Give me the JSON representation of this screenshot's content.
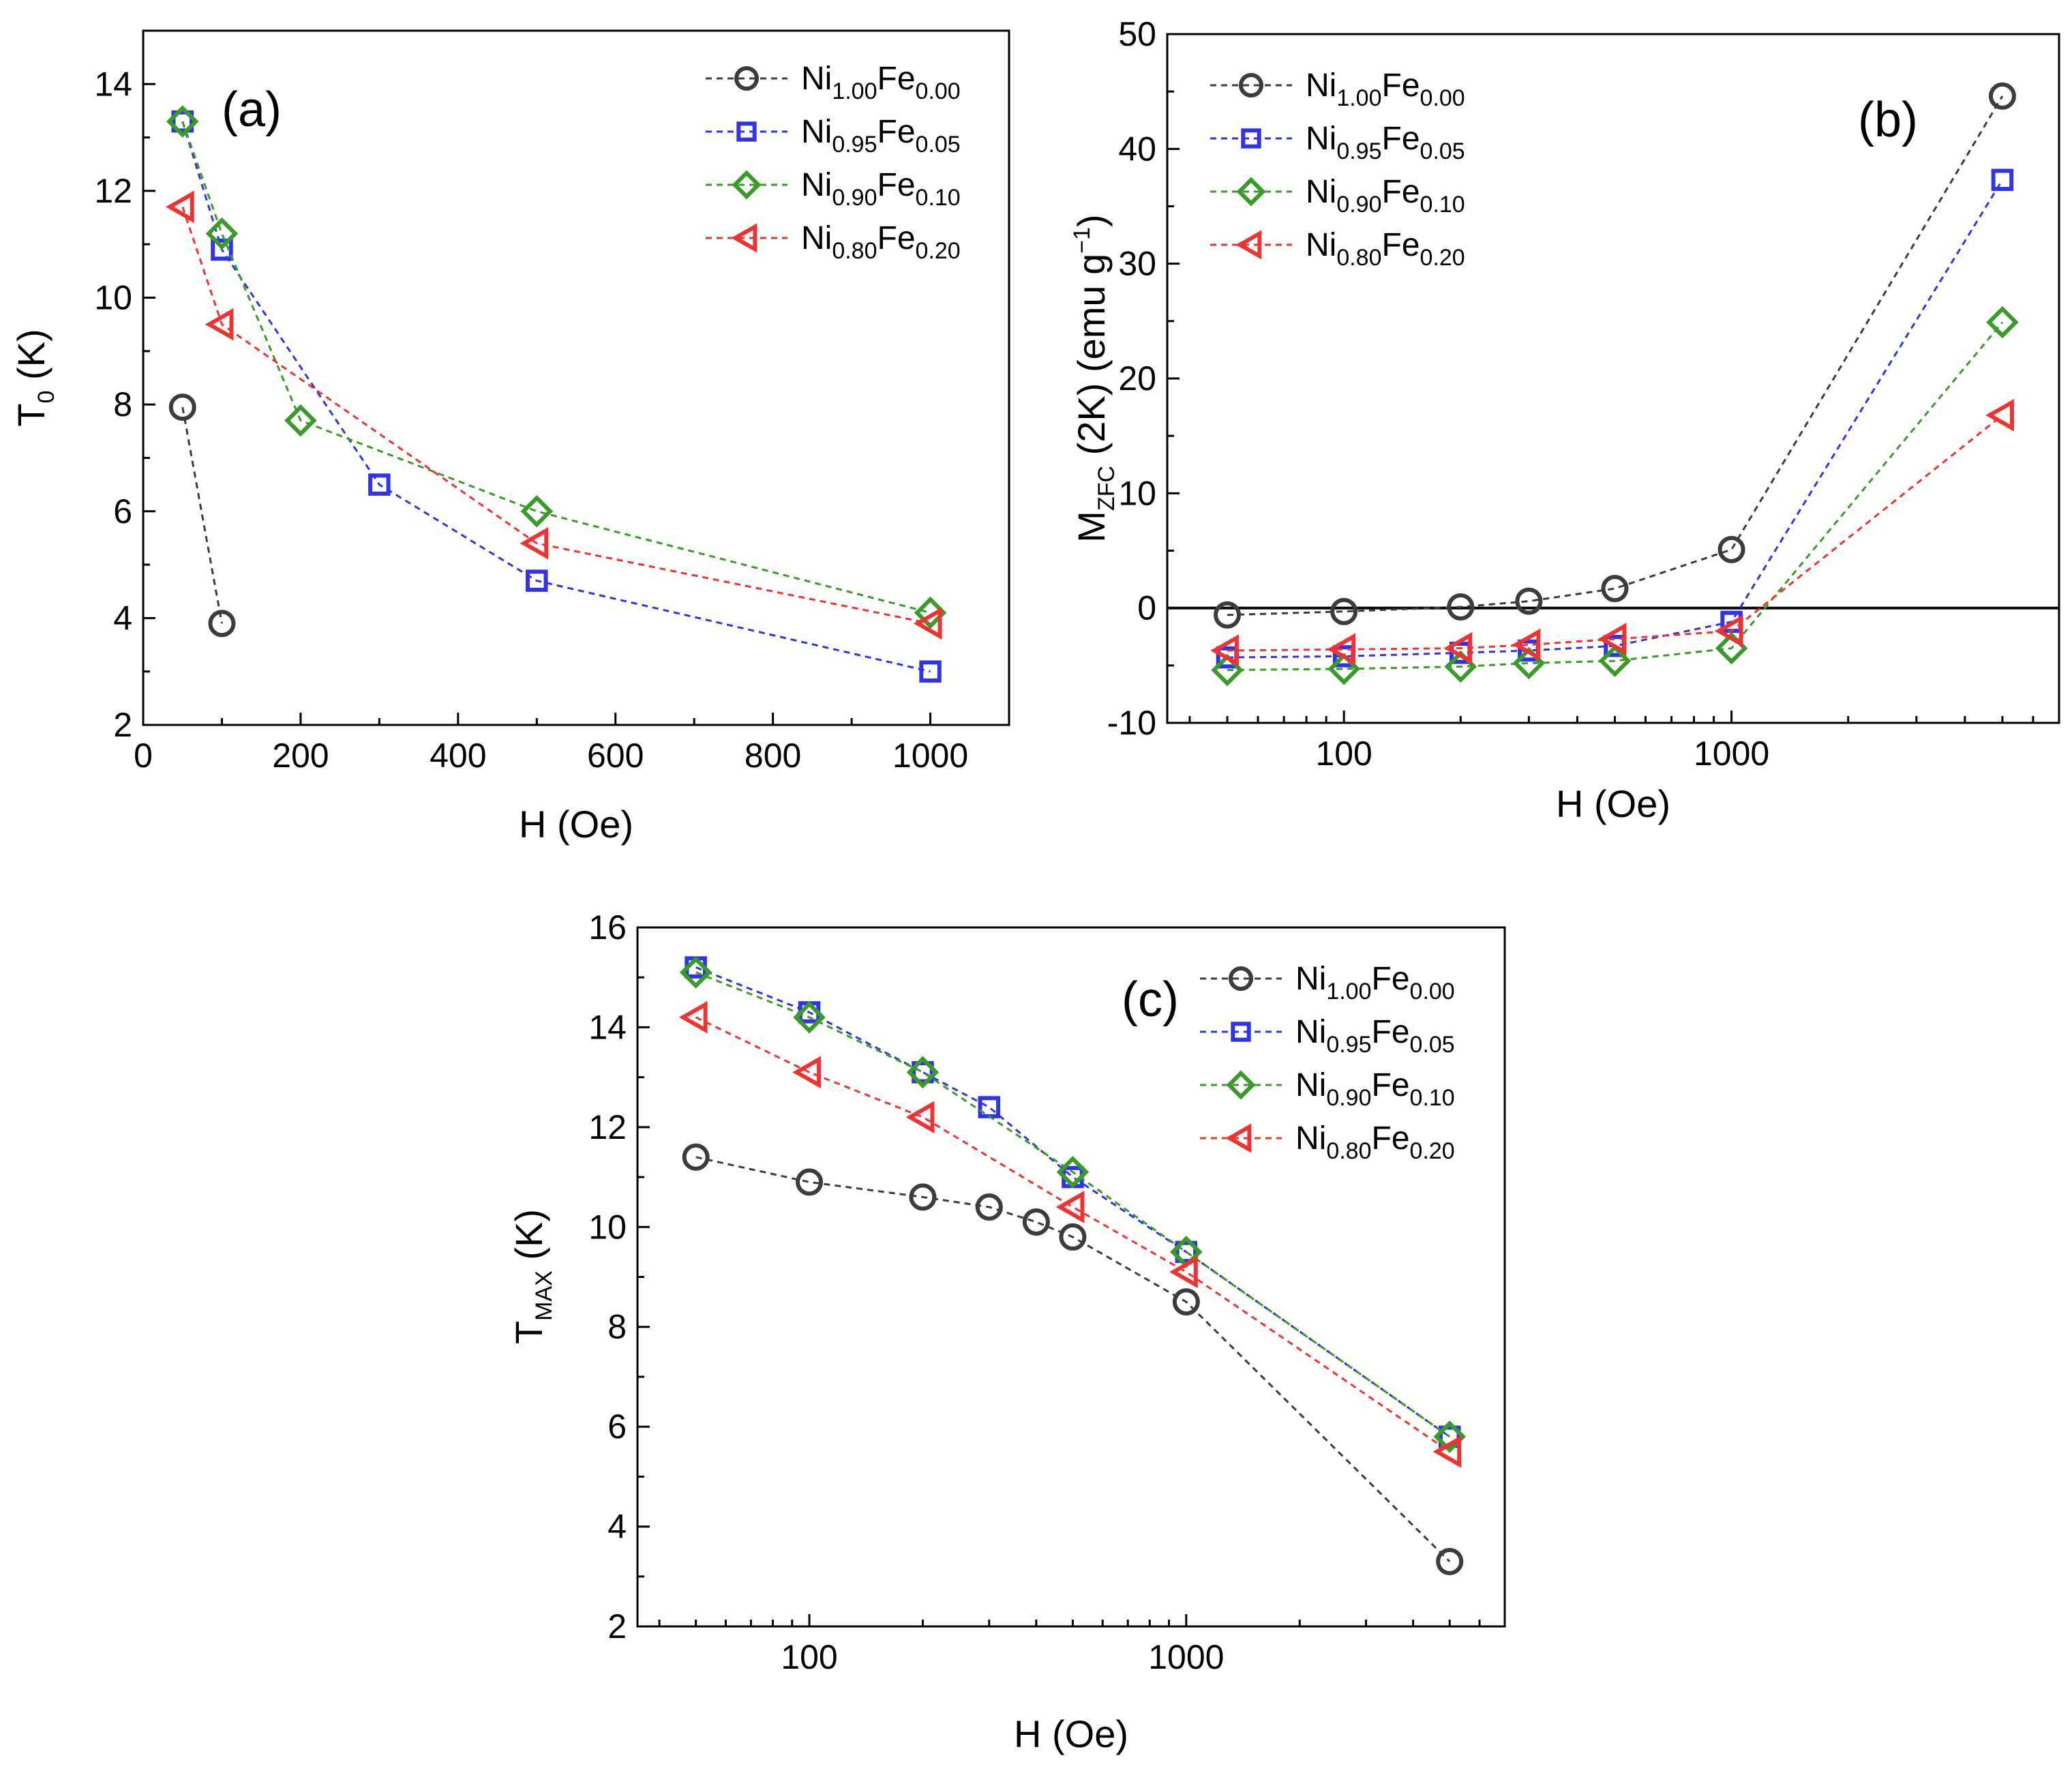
{
  "colors": {
    "Ni1.00Fe0.00": "#3c3c3c",
    "Ni0.95Fe0.05": "#3333e6",
    "Ni0.90Fe0.10": "#3a9a2a",
    "Ni0.80Fe0.20": "#ee3333"
  },
  "series_styles": [
    {
      "name": "Ni1.00Fe0.00",
      "marker": "circle"
    },
    {
      "name": "Ni0.95Fe0.05",
      "marker": "square"
    },
    {
      "name": "Ni0.90Fe0.10",
      "marker": "diamond"
    },
    {
      "name": "Ni0.80Fe0.20",
      "marker": "triangle-left"
    }
  ],
  "legend_labels": [
    {
      "name": "Ni1.00Fe0.00",
      "a": "Ni",
      "a_sub": "1.00",
      "b": "Fe",
      "b_sub": "0.00"
    },
    {
      "name": "Ni0.95Fe0.05",
      "a": "Ni",
      "a_sub": "0.95",
      "b": "Fe",
      "b_sub": "0.05"
    },
    {
      "name": "Ni0.90Fe0.10",
      "a": "Ni",
      "a_sub": "0.90",
      "b": "Fe",
      "b_sub": "0.10"
    },
    {
      "name": "Ni0.80Fe0.20",
      "a": "Ni",
      "a_sub": "0.80",
      "b": "Fe",
      "b_sub": "0.20"
    }
  ],
  "ylabel_parts": {
    "a": {
      "main": "T",
      "sub": "0",
      "rest": " (K)"
    },
    "b": {
      "main": "M",
      "sub": "ZFC",
      "mid": " (2K) (emu g",
      "sup": "−1",
      "end": ")"
    },
    "c": {
      "main": "T",
      "sub": "MAX",
      "rest": " (K)"
    }
  },
  "chart_data": [
    {
      "id": "a",
      "type": "scatter",
      "panel_label": "(a)",
      "xlabel": "H (Oe)",
      "ylabel": "T0 (K)",
      "xscale": "linear",
      "xlim": [
        0,
        1100
      ],
      "ylim": [
        2,
        15
      ],
      "xticks": [
        0,
        200,
        400,
        600,
        800,
        1000
      ],
      "yticks": [
        2,
        4,
        6,
        8,
        10,
        12,
        14
      ],
      "legend_position": "top-right",
      "series": [
        {
          "name": "Ni1.00Fe0.00",
          "x": [
            50,
            100
          ],
          "y": [
            7.95,
            3.9
          ]
        },
        {
          "name": "Ni0.95Fe0.05",
          "x": [
            50,
            100,
            300,
            500,
            1000
          ],
          "y": [
            13.3,
            10.9,
            6.5,
            4.7,
            3.0
          ]
        },
        {
          "name": "Ni0.90Fe0.10",
          "x": [
            50,
            100,
            200,
            500,
            1000
          ],
          "y": [
            13.3,
            11.2,
            7.7,
            6.0,
            4.1
          ]
        },
        {
          "name": "Ni0.80Fe0.20",
          "x": [
            50,
            100,
            500,
            1000
          ],
          "y": [
            11.7,
            9.5,
            5.4,
            3.9
          ]
        }
      ]
    },
    {
      "id": "b",
      "type": "scatter",
      "panel_label": "(b)",
      "xlabel": "H (Oe)",
      "ylabel": "MZFC (2K) (emu g−1)",
      "xscale": "log",
      "xlim": [
        35,
        7000
      ],
      "ylim": [
        -10,
        50
      ],
      "xticks": [
        100,
        1000
      ],
      "yticks": [
        -10,
        0,
        10,
        20,
        30,
        40,
        50
      ],
      "zero_line": true,
      "legend_position": "top-left",
      "series": [
        {
          "name": "Ni1.00Fe0.00",
          "x": [
            50,
            100,
            200,
            300,
            500,
            1000,
            5000
          ],
          "y": [
            -0.6,
            -0.3,
            0.1,
            0.6,
            1.7,
            5.1,
            44.6
          ]
        },
        {
          "name": "Ni0.95Fe0.05",
          "x": [
            50,
            100,
            200,
            300,
            500,
            1000,
            5000
          ],
          "y": [
            -4.3,
            -4.2,
            -3.9,
            -3.7,
            -3.3,
            -1.2,
            37.3
          ]
        },
        {
          "name": "Ni0.90Fe0.10",
          "x": [
            50,
            100,
            200,
            300,
            500,
            1000,
            5000
          ],
          "y": [
            -5.4,
            -5.3,
            -5.1,
            -4.8,
            -4.6,
            -3.5,
            24.9
          ]
        },
        {
          "name": "Ni0.80Fe0.20",
          "x": [
            50,
            100,
            200,
            300,
            500,
            1000,
            5000
          ],
          "y": [
            -3.7,
            -3.6,
            -3.5,
            -3.2,
            -2.7,
            -2.0,
            16.8
          ]
        }
      ]
    },
    {
      "id": "c",
      "type": "scatter",
      "panel_label": "(c)",
      "xlabel": "H (Oe)",
      "ylabel": "TMAX (K)",
      "xscale": "log",
      "xlim": [
        35,
        7000
      ],
      "ylim": [
        2,
        16
      ],
      "xticks": [
        100,
        1000
      ],
      "yticks": [
        2,
        4,
        6,
        8,
        10,
        12,
        14,
        16
      ],
      "legend_position": "top-right",
      "series": [
        {
          "name": "Ni1.00Fe0.00",
          "x": [
            50,
            100,
            200,
            300,
            400,
            500,
            1000,
            5000
          ],
          "y": [
            11.4,
            10.9,
            10.6,
            10.4,
            10.1,
            9.8,
            8.5,
            3.3
          ]
        },
        {
          "name": "Ni0.95Fe0.05",
          "x": [
            50,
            100,
            200,
            300,
            500,
            1000,
            5000
          ],
          "y": [
            15.2,
            14.3,
            13.1,
            12.4,
            11.0,
            9.5,
            5.8
          ]
        },
        {
          "name": "Ni0.90Fe0.10",
          "x": [
            50,
            100,
            200,
            500,
            1000,
            5000
          ],
          "y": [
            15.1,
            14.2,
            13.1,
            11.1,
            9.5,
            5.8
          ]
        },
        {
          "name": "Ni0.80Fe0.20",
          "x": [
            50,
            100,
            200,
            500,
            1000,
            5000
          ],
          "y": [
            14.2,
            13.1,
            12.2,
            10.4,
            9.1,
            5.5
          ]
        }
      ]
    }
  ]
}
